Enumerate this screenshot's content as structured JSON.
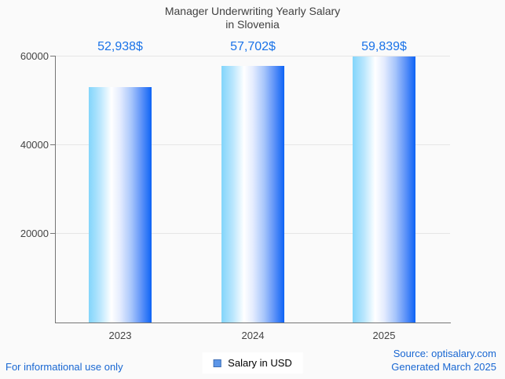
{
  "title": {
    "line1": "Manager Underwriting Yearly Salary",
    "line2": "in Slovenia"
  },
  "chart_data": {
    "type": "bar",
    "title": "Manager Underwriting Yearly Salary in Slovenia",
    "categories": [
      "2023",
      "2024",
      "2025"
    ],
    "series": [
      {
        "name": "Salary in USD",
        "values": [
          52938,
          57702,
          59839
        ],
        "value_labels": [
          "52,938$",
          "57,702$",
          "59,839$"
        ]
      }
    ],
    "xlabel": "",
    "ylabel": "",
    "ylim": [
      0,
      60000
    ],
    "yticks": [
      "20000",
      "40000",
      "60000"
    ],
    "grid": true,
    "legend_position": "bottom"
  },
  "legend": {
    "label": "Salary in USD"
  },
  "footer": {
    "disclaimer": "For informational use only",
    "source": "Source: optisalary.com",
    "generated": "Generated March 2025"
  },
  "colors": {
    "background": "#fafafa",
    "title": "#404040",
    "text": "#444444",
    "axis": "#757575",
    "grid": "#e6e6e6",
    "value_label": "#1a73e8",
    "link": "#1967d2",
    "bar_gradient_left": "#82d5fb",
    "bar_gradient_right": "#0d63f5",
    "legend_swatch_fill": "#5c96e8",
    "legend_swatch_border": "#3f6fb5"
  }
}
